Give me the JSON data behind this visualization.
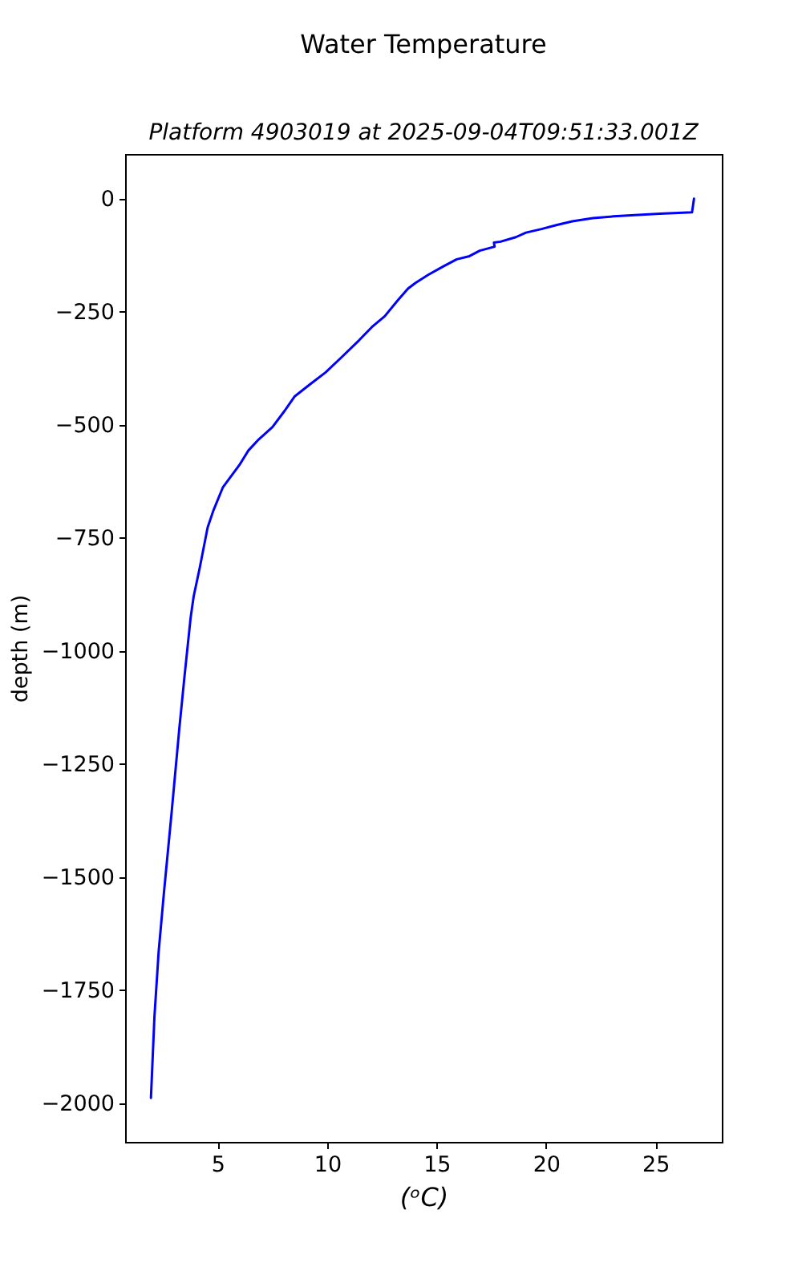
{
  "chart_data": {
    "type": "line",
    "title": "Water Temperature",
    "subtitle": "Platform 4903019 at 2025-09-04T09:51:33.001Z",
    "xlabel": "(ᵒC)",
    "ylabel": "depth (m)",
    "series": [
      {
        "color": "#0000ff",
        "x": [
          26.76,
          26.67,
          25.19,
          23.08,
          22.14,
          21.2,
          20.5,
          19.79,
          19.08,
          18.62,
          17.92,
          17.62,
          17.65,
          16.97,
          16.5,
          15.92,
          15.33,
          14.63,
          14.04,
          13.69,
          13.22,
          12.63,
          12.04,
          11.46,
          10.63,
          9.93,
          9.23,
          8.52,
          8.06,
          7.5,
          6.88,
          6.4,
          5.99,
          5.24,
          4.8,
          4.54,
          4.18,
          3.9,
          3.76,
          3.48,
          3.24,
          2.89,
          2.54,
          2.3,
          2.11,
          1.95
        ],
        "values": [
          0,
          -30,
          -33,
          -39,
          -43,
          -50,
          -58,
          -67,
          -75,
          -85,
          -95,
          -97,
          -106,
          -115,
          -127,
          -134,
          -149,
          -168,
          -186,
          -199,
          -225,
          -260,
          -284,
          -313,
          -352,
          -384,
          -410,
          -437,
          -469,
          -505,
          -532,
          -557,
          -589,
          -638,
          -690,
          -727,
          -816,
          -880,
          -928,
          -1058,
          -1175,
          -1360,
          -1537,
          -1667,
          -1809,
          -1989
        ]
      }
    ],
    "xlim": [
      0.77,
      28.03
    ],
    "ylim": [
      -2086,
      99
    ],
    "xticks": [
      5,
      10,
      15,
      20,
      25
    ],
    "yticks": [
      0,
      -250,
      -500,
      -750,
      -1000,
      -1250,
      -1500,
      -1750,
      -2000
    ],
    "grid": false,
    "line_style": "solid"
  }
}
